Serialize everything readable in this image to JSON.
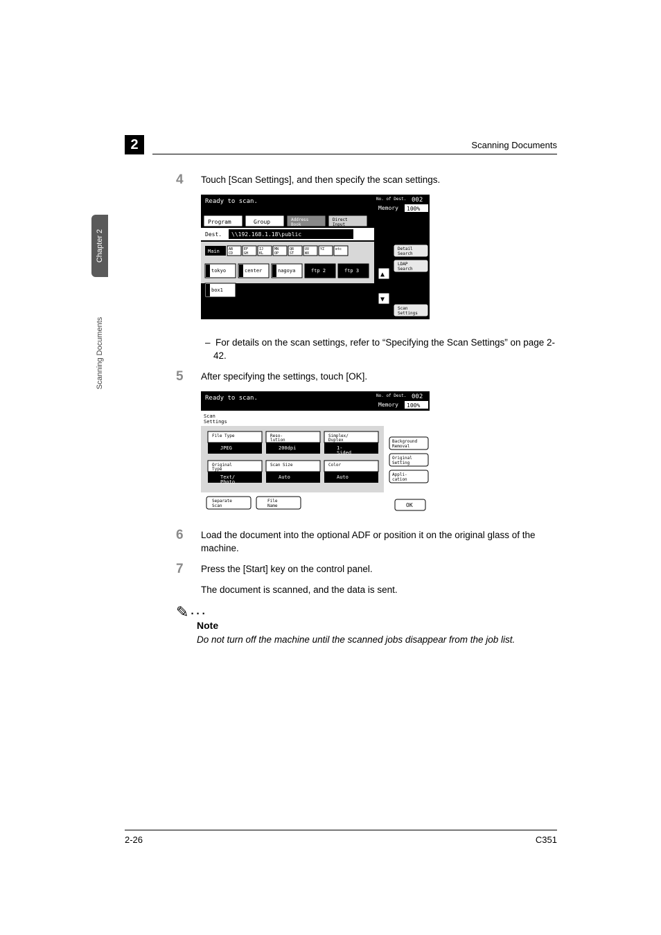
{
  "side_tab": {
    "chapter_label": "Chapter 2",
    "section_label": "Scanning Documents"
  },
  "header": {
    "chapter_number": "2",
    "title": "Scanning Documents"
  },
  "steps": {
    "s4": {
      "num": "4",
      "text": "Touch [Scan Settings], and then specify the scan settings.",
      "sub_text": "For details on the scan settings, refer to “Specifying the Scan Settings” on page 2-42."
    },
    "s5": {
      "num": "5",
      "text": "After specifying the settings, touch [OK]."
    },
    "s6": {
      "num": "6",
      "text": "Load the document into the optional ADF or position it on the original glass of the machine."
    },
    "s7": {
      "num": "7",
      "text": "Press the [Start] key on the control panel.",
      "text2": "The document is scanned, and the data is sent."
    }
  },
  "note": {
    "icon": "✎",
    "title": "Note",
    "body": "Do not turn off the machine until the scanned jobs disappear from the job list."
  },
  "footer": {
    "page": "2-26",
    "model": "C351"
  },
  "panel1": {
    "bg": "#000000",
    "panel_bg": "#ffffff",
    "status": "Ready to scan.",
    "dest_count_label": "No. of\nDest.",
    "dest_count": "002",
    "memory_label": "Memory",
    "memory_value": "100%",
    "tabs": {
      "program": "Program",
      "group": "Group",
      "address": "Address\nBook",
      "direct": "Direct\nInput"
    },
    "dest_label": "Dest.",
    "dest_value": "\\\\192.168.1.18\\public",
    "index_main": "Main",
    "index_items": [
      "AB\nCD",
      "EF\nGH",
      "IJ\nKL",
      "MN\nOP",
      "QR\nST",
      "UV\nWX",
      "YZ",
      "etc"
    ],
    "entries": [
      "tokyo",
      "center",
      "nagoya",
      "ftp 2",
      "ftp 3",
      "box1"
    ],
    "side_buttons": {
      "detail": "Detail\nSearch",
      "ldap": "LDAP\nSearch",
      "scan": "Scan\nSettings"
    },
    "arrows": {
      "up": "▲",
      "down": "▼"
    }
  },
  "panel2": {
    "status": "Ready to scan.",
    "dest_count_label": "No. of\nDest.",
    "dest_count": "002",
    "memory_label": "Memory",
    "memory_value": "100%",
    "title": "Scan\nSettings",
    "row1": {
      "c1_label": "File Type",
      "c1_val": "JPEG",
      "c2_label": "Reso-\nlution",
      "c2_val": "200dpi",
      "c3_label": "Simplex/\nDuplex",
      "c3_val": "1-\nSided"
    },
    "row2": {
      "c1_label": "Original\nType",
      "c1_val": "Text/\nPhoto",
      "c2_label": "Scan Size",
      "c2_val": "Auto",
      "c3_label": "Color",
      "c3_val": "Auto"
    },
    "bottom": {
      "separate": "Separate\nScan",
      "filename": "File\nName"
    },
    "side": {
      "bg": "Background\nRemoval",
      "orig": "Original\nSetting",
      "app": "Appli-\ncation"
    },
    "ok": "OK"
  }
}
